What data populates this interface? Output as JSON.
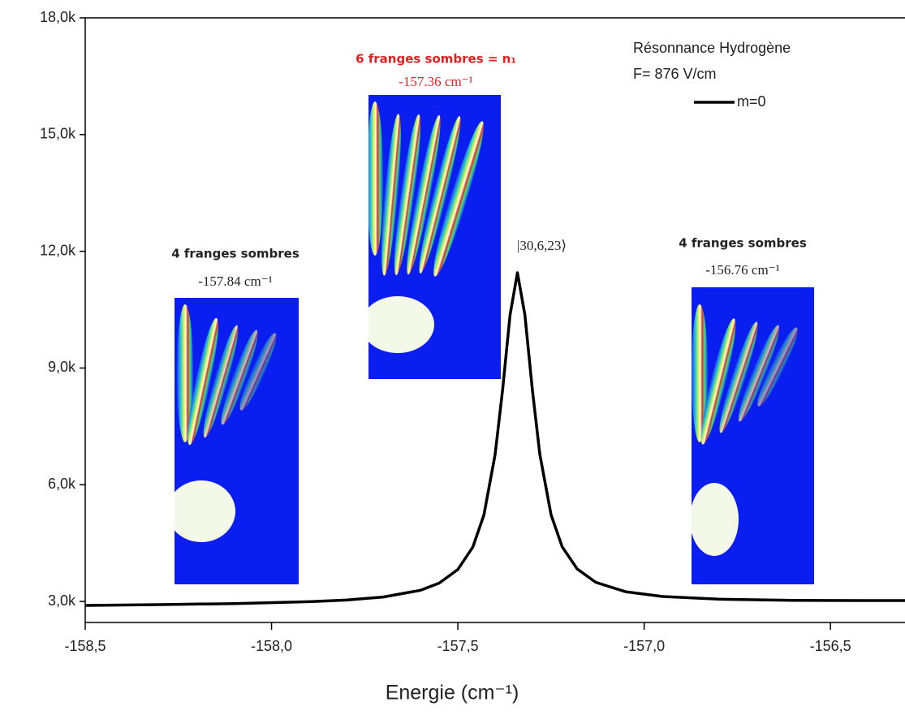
{
  "chart_data": {
    "type": "line",
    "xlabel": "Energie (cm⁻¹)",
    "legend_title": [
      "Résonnance Hydrogène",
      "F= 876 V/cm"
    ],
    "x": [
      -158.5,
      -158.3,
      -158.1,
      -157.9,
      -157.8,
      -157.7,
      -157.6,
      -157.55,
      -157.5,
      -157.46,
      -157.43,
      -157.4,
      -157.38,
      -157.36,
      -157.34,
      -157.32,
      -157.3,
      -157.28,
      -157.25,
      -157.22,
      -157.18,
      -157.13,
      -157.05,
      -156.95,
      -156.8,
      -156.6,
      -156.4,
      -156.3
    ],
    "series": [
      {
        "name": "m=0",
        "color": "#000000",
        "values": [
          2899,
          2918,
          2946,
          2993,
          3036,
          3116,
          3289,
          3471,
          3823,
          4395,
          5223,
          6776,
          8435,
          10362,
          11450,
          10364,
          8440,
          6782,
          5231,
          4406,
          3838,
          3492,
          3251,
          3128,
          3058,
          3029,
          3023,
          3023
        ]
      }
    ],
    "xlim": [
      -158.5,
      -156.3
    ],
    "xticks": [
      {
        "value": -158.5,
        "label": "-158,5"
      },
      {
        "value": -158.0,
        "label": "-158,0"
      },
      {
        "value": -157.5,
        "label": "-157,5"
      },
      {
        "value": -157.0,
        "label": "-157,0"
      },
      {
        "value": -156.5,
        "label": "-156,5"
      }
    ],
    "ylim": [
      2460,
      18000
    ],
    "yticks": [
      {
        "value": 3000,
        "label": "3,0k"
      },
      {
        "value": 6000,
        "label": "6,0k"
      },
      {
        "value": 9000,
        "label": "9,0k"
      },
      {
        "value": 12000,
        "label": "12,0k"
      },
      {
        "value": 15000,
        "label": "15,0k"
      },
      {
        "value": 18000,
        "label": "18,0k"
      }
    ],
    "annotations": [
      {
        "title": "4 franges sombres",
        "energy": "-157.84 cm⁻¹"
      },
      {
        "title": "6 franges sombres = n₁",
        "energy": "-157.36 cm⁻¹",
        "color": "#e02020"
      },
      {
        "title": "4 franges sombres",
        "energy": "-156.76 cm⁻¹"
      }
    ],
    "peak_label": "|30,6,23⟩"
  }
}
